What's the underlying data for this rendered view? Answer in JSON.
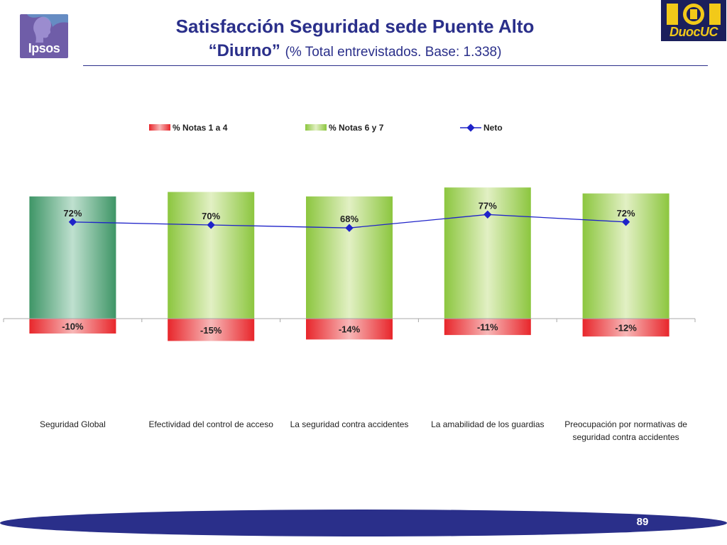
{
  "header": {
    "title_line1": "Satisfacción Seguridad sede Puente Alto",
    "title_line2_main": "“Diurno”",
    "title_line2_sub": "(% Total entrevistados. Base: 1.338)"
  },
  "logos": {
    "ipsos": "Ipsos",
    "duoc": "DuocUC"
  },
  "footer": {
    "page_number": "89"
  },
  "colors": {
    "title": "#2a2f8a",
    "negative_bar": "#e8262b",
    "positive_bar": "#8cc63f",
    "global_bar": "#3e9566",
    "line": "#1f23c9"
  },
  "chart_data": {
    "type": "bar",
    "categories": [
      "Seguridad Global",
      "Efectividad del control de acceso",
      "La seguridad contra accidentes",
      "La amabilidad de los guardias",
      "Preocupación por normativas de seguridad contra accidentes"
    ],
    "category_label_lines": [
      [
        "Seguridad Global"
      ],
      [
        "Efectividad del control de acceso"
      ],
      [
        "La seguridad contra accidentes"
      ],
      [
        "La amabilidad de los guardias"
      ],
      [
        "Preocupación por normativas de",
        "seguridad contra accidentes"
      ]
    ],
    "series": [
      {
        "name": "% Notas 1 a 4",
        "type": "bar",
        "values": [
          -10,
          -15,
          -14,
          -11,
          -12
        ],
        "labels": [
          "-10%",
          "-15%",
          "-14%",
          "-11%",
          "-12%"
        ]
      },
      {
        "name": "% Notas 6 y 7",
        "type": "bar",
        "values": [
          82,
          85,
          82,
          88,
          84
        ]
      },
      {
        "name": "Neto",
        "type": "line",
        "values": [
          72,
          70,
          68,
          77,
          72
        ],
        "labels": [
          "72%",
          "70%",
          "68%",
          "77%",
          "72%"
        ]
      }
    ],
    "legend_position": "top",
    "grid": false
  }
}
